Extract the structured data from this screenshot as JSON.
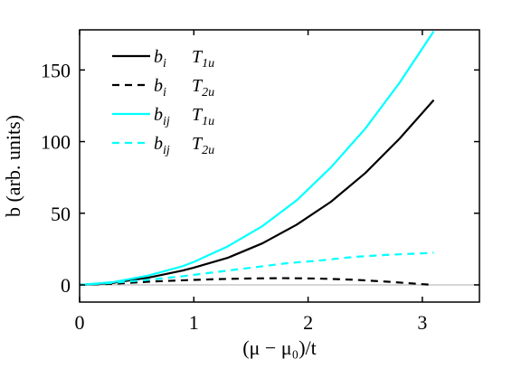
{
  "chart_data": {
    "type": "line",
    "xlabel": "(μ − μ₀)/t",
    "ylabel": "b (arb. units)",
    "xlim": [
      0,
      3.5
    ],
    "ylim": [
      -12,
      178
    ],
    "xticks": [
      0,
      1,
      2,
      3
    ],
    "yticks": [
      0,
      50,
      100,
      150
    ],
    "grid": false,
    "legend_position": "top-left",
    "reference_line": {
      "y": 0,
      "color": "#c8c8c8"
    },
    "series": [
      {
        "name": "b_i  T_1u",
        "label_main": "b",
        "label_sub": "i",
        "label_sym": "T",
        "label_sym_sub": "1u",
        "color": "#000000",
        "dash": "solid",
        "x": [
          0,
          0.3,
          0.6,
          0.9,
          1.0,
          1.3,
          1.6,
          1.9,
          2.2,
          2.5,
          2.8,
          3.1
        ],
        "y": [
          0,
          1.5,
          5,
          10,
          12,
          19,
          29,
          42,
          58,
          78,
          102,
          129
        ]
      },
      {
        "name": "b_i  T_2u",
        "label_main": "b",
        "label_sub": "i",
        "label_sym": "T",
        "label_sym_sub": "2u",
        "color": "#000000",
        "dash": "dashed",
        "x": [
          0,
          0.3,
          0.6,
          0.9,
          1.2,
          1.5,
          1.8,
          2.1,
          2.4,
          2.7,
          3.0,
          3.1
        ],
        "y": [
          0,
          0.8,
          2.2,
          3.2,
          4,
          4.5,
          4.7,
          4.4,
          3.6,
          2.2,
          0.5,
          0
        ]
      },
      {
        "name": "b_ij  T_1u",
        "label_main": "b",
        "label_sub": "ij",
        "label_sym": "T",
        "label_sym_sub": "1u",
        "color": "#00ffff",
        "dash": "solid",
        "x": [
          0,
          0.3,
          0.6,
          0.9,
          1.0,
          1.3,
          1.6,
          1.9,
          2.2,
          2.5,
          2.8,
          3.1
        ],
        "y": [
          0,
          2,
          6.5,
          13,
          16,
          27,
          41,
          59,
          82,
          109,
          141,
          177
        ]
      },
      {
        "name": "b_ij  T_2u",
        "label_main": "b",
        "label_sub": "ij",
        "label_sym": "T",
        "label_sym_sub": "2u",
        "color": "#00ffff",
        "dash": "dashed",
        "x": [
          0,
          0.3,
          0.6,
          0.9,
          1.2,
          1.5,
          1.8,
          2.1,
          2.4,
          2.7,
          3.0,
          3.1
        ],
        "y": [
          0,
          1.5,
          3.5,
          6,
          9,
          12,
          15,
          17,
          19.5,
          21,
          22,
          22.5
        ]
      }
    ]
  }
}
